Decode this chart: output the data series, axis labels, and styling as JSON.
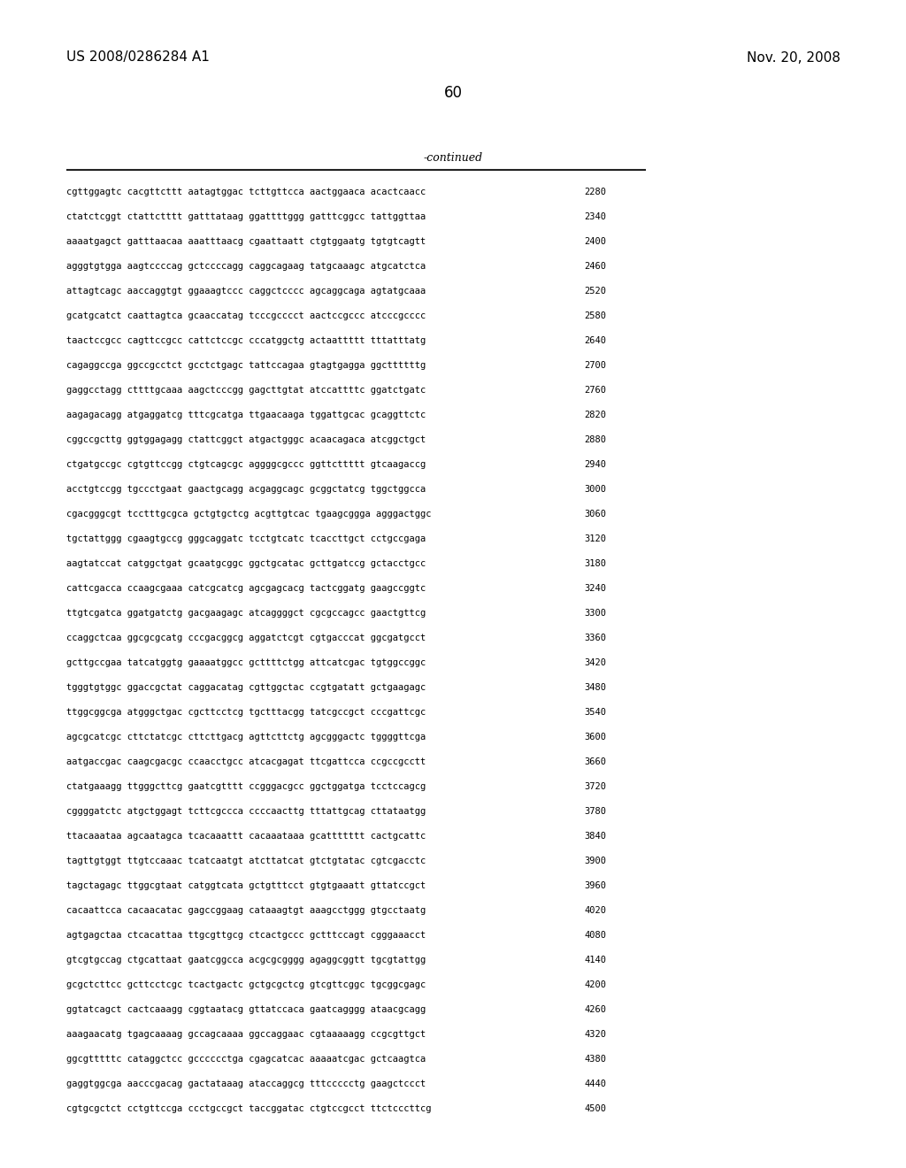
{
  "header_left": "US 2008/0286284 A1",
  "header_right": "Nov. 20, 2008",
  "page_number": "60",
  "continued_label": "-continued",
  "background_color": "#ffffff",
  "text_color": "#000000",
  "sequences": [
    [
      "cgttggagtc cacgttcttt aatagtggac tcttgttcca aactggaaca acactcaacc",
      "2280"
    ],
    [
      "ctatctcggt ctattctttt gatttataag ggattttggg gatttcggcc tattggttaa",
      "2340"
    ],
    [
      "aaaatgagct gatttaacaa aaatttaacg cgaattaatt ctgtggaatg tgtgtcagtt",
      "2400"
    ],
    [
      "agggtgtgga aagtccccag gctccccagg caggcagaag tatgcaaagc atgcatctca",
      "2460"
    ],
    [
      "attagtcagc aaccaggtgt ggaaagtccc caggctcccc agcaggcaga agtatgcaaa",
      "2520"
    ],
    [
      "gcatgcatct caattagtca gcaaccatag tcccgcccct aactccgccc atcccgcccc",
      "2580"
    ],
    [
      "taactccgcc cagttccgcc cattctccgc cccatggctg actaattttt tttatttatg",
      "2640"
    ],
    [
      "cagaggccga ggccgcctct gcctctgagc tattccagaa gtagtgagga ggcttttttg",
      "2700"
    ],
    [
      "gaggcctagg cttttgcaaa aagctcccgg gagcttgtat atccattttc ggatctgatc",
      "2760"
    ],
    [
      "aagagacagg atgaggatcg tttcgcatga ttgaacaaga tggattgcac gcaggttctc",
      "2820"
    ],
    [
      "cggccgcttg ggtggagagg ctattcggct atgactgggc acaacagaca atcggctgct",
      "2880"
    ],
    [
      "ctgatgccgc cgtgttccgg ctgtcagcgc aggggcgccc ggttcttttt gtcaagaccg",
      "2940"
    ],
    [
      "acctgtccgg tgccctgaat gaactgcagg acgaggcagc gcggctatcg tggctggcca",
      "3000"
    ],
    [
      "cgacgggcgt tcctttgcgca gctgtgctcg acgttgtcac tgaagcggga agggactggc",
      "3060"
    ],
    [
      "tgctattggg cgaagtgccg gggcaggatc tcctgtcatc tcaccttgct cctgccgaga",
      "3120"
    ],
    [
      "aagtatccat catggctgat gcaatgcggc ggctgcatac gcttgatccg gctacctgcc",
      "3180"
    ],
    [
      "cattcgacca ccaagcgaaa catcgcatcg agcgagcacg tactcggatg gaagccggtc",
      "3240"
    ],
    [
      "ttgtcgatca ggatgatctg gacgaagagc atcaggggct cgcgccagcc gaactgttcg",
      "3300"
    ],
    [
      "ccaggctcaa ggcgcgcatg cccgacggcg aggatctcgt cgtgacccat ggcgatgcct",
      "3360"
    ],
    [
      "gcttgccgaa tatcatggtg gaaaatggcc gcttttctgg attcatcgac tgtggccggc",
      "3420"
    ],
    [
      "tgggtgtggc ggaccgctat caggacatag cgttggctac ccgtgatatt gctgaagagc",
      "3480"
    ],
    [
      "ttggcggcga atgggctgac cgcttcctcg tgctttacgg tatcgccgct cccgattcgc",
      "3540"
    ],
    [
      "agcgcatcgc cttctatcgc cttcttgacg agttcttctg agcgggactc tggggttcga",
      "3600"
    ],
    [
      "aatgaccgac caagcgacgc ccaacctgcc atcacgagat ttcgattcca ccgccgcctt",
      "3660"
    ],
    [
      "ctatgaaagg ttgggcttcg gaatcgtttt ccgggacgcc ggctggatga tcctccagcg",
      "3720"
    ],
    [
      "cggggatctc atgctggagt tcttcgccca ccccaacttg tttattgcag cttataatgg",
      "3780"
    ],
    [
      "ttacaaataa agcaatagca tcacaaattt cacaaataaa gcattttttt cactgcattc",
      "3840"
    ],
    [
      "tagttgtggt ttgtccaaac tcatcaatgt atcttatcat gtctgtatac cgtcgacctc",
      "3900"
    ],
    [
      "tagctagagc ttggcgtaat catggtcata gctgtttcct gtgtgaaatt gttatccgct",
      "3960"
    ],
    [
      "cacaattcca cacaacatac gagccggaag cataaagtgt aaagcctggg gtgcctaatg",
      "4020"
    ],
    [
      "agtgagctaa ctcacattaa ttgcgttgcg ctcactgccc gctttccagt cgggaaacct",
      "4080"
    ],
    [
      "gtcgtgccag ctgcattaat gaatcggcca acgcgcgggg agaggcggtt tgcgtattgg",
      "4140"
    ],
    [
      "gcgctcttcc gcttcctcgc tcactgactc gctgcgctcg gtcgttcggc tgcggcgagc",
      "4200"
    ],
    [
      "ggtatcagct cactcaaagg cggtaatacg gttatccaca gaatcagggg ataacgcagg",
      "4260"
    ],
    [
      "aaagaacatg tgagcaaaag gccagcaaaa ggccaggaac cgtaaaaagg ccgcgttgct",
      "4320"
    ],
    [
      "ggcgtttttc cataggctcc gcccccctga cgagcatcac aaaaatcgac gctcaagtca",
      "4380"
    ],
    [
      "gaggtggcga aacccgacag gactataaag ataccaggcg tttccccctg gaagctccct",
      "4440"
    ],
    [
      "cgtgcgctct cctgttccga ccctgccgct taccggatac ctgtccgcct ttctcccttcg",
      "4500"
    ]
  ]
}
